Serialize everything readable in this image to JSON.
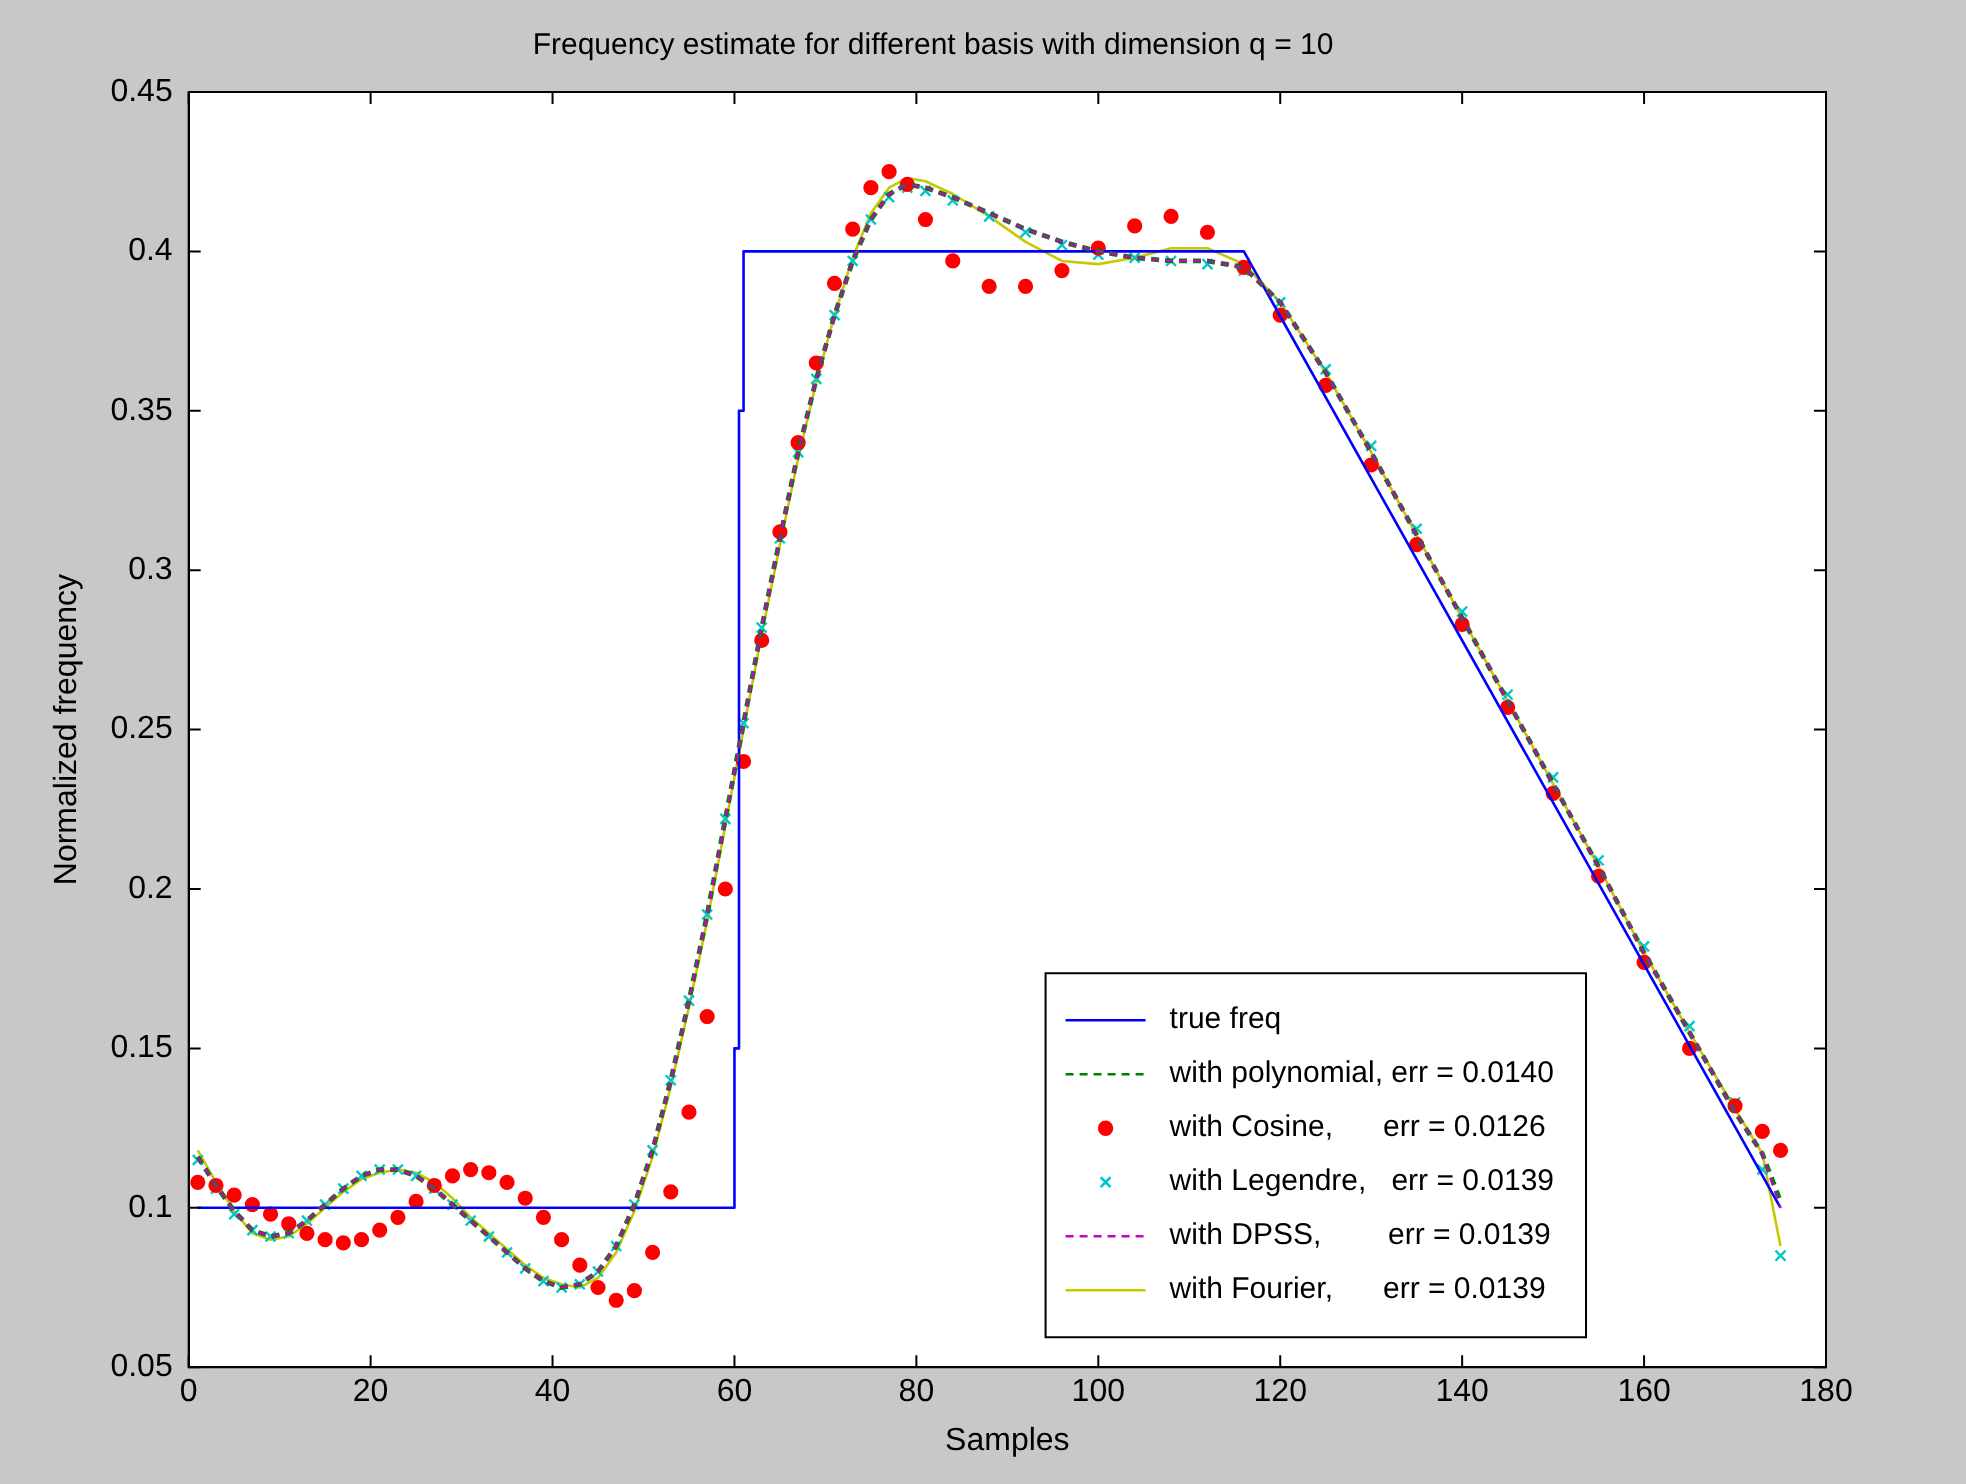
{
  "chart_data": {
    "type": "line",
    "title": "Frequency estimate for different basis with dimension q = 10",
    "xlabel": "Samples",
    "ylabel": "Normalized frequency",
    "xlim": [
      0,
      180
    ],
    "xticks": [
      0,
      20,
      40,
      60,
      80,
      100,
      120,
      140,
      160,
      180
    ],
    "ylim": [
      0.05,
      0.45
    ],
    "yticks": [
      0.05,
      0.1,
      0.15,
      0.2,
      0.25,
      0.3,
      0.35,
      0.4,
      0.45
    ],
    "grid": false,
    "legend": "bottom right",
    "marker": "none",
    "line_style": "solid",
    "series": [
      {
        "name": "true freq",
        "color": "#0000ff",
        "x": [
          1,
          60,
          60,
          60.5,
          60.5,
          61,
          61,
          116,
          175
        ],
        "values": [
          0.1,
          0.1,
          0.15,
          0.15,
          0.35,
          0.35,
          0.4,
          0.4,
          0.1
        ]
      },
      {
        "name": "with polynomial, err = 0.0140",
        "color": "#008000",
        "line_style": "dashed",
        "x": [
          1,
          3,
          5,
          7,
          9,
          11,
          13,
          15,
          17,
          19,
          21,
          23,
          25,
          27,
          29,
          31,
          33,
          35,
          37,
          39,
          41,
          43,
          45,
          47,
          49,
          51,
          53,
          55,
          57,
          59,
          61,
          63,
          65,
          67,
          69,
          71,
          73,
          75,
          77,
          79,
          81,
          84,
          88,
          92,
          96,
          100,
          104,
          108,
          112,
          116,
          120,
          125,
          130,
          135,
          140,
          145,
          150,
          155,
          160,
          165,
          170,
          173,
          175
        ],
        "values": [
          0.116,
          0.107,
          0.099,
          0.093,
          0.091,
          0.092,
          0.096,
          0.101,
          0.106,
          0.11,
          0.112,
          0.112,
          0.11,
          0.106,
          0.101,
          0.096,
          0.091,
          0.086,
          0.081,
          0.077,
          0.075,
          0.076,
          0.08,
          0.088,
          0.101,
          0.118,
          0.14,
          0.165,
          0.192,
          0.222,
          0.252,
          0.282,
          0.31,
          0.337,
          0.36,
          0.38,
          0.397,
          0.41,
          0.418,
          0.421,
          0.42,
          0.417,
          0.412,
          0.407,
          0.403,
          0.4,
          0.398,
          0.397,
          0.397,
          0.395,
          0.384,
          0.362,
          0.337,
          0.311,
          0.285,
          0.259,
          0.233,
          0.207,
          0.18,
          0.155,
          0.13,
          0.117,
          0.102
        ]
      },
      {
        "name": "with Cosine,      err = 0.0126",
        "type": "scatter",
        "color": "#ff0000",
        "marker": "circle",
        "x": [
          1,
          3,
          5,
          7,
          9,
          11,
          13,
          15,
          17,
          19,
          21,
          23,
          25,
          27,
          29,
          31,
          33,
          35,
          37,
          39,
          41,
          43,
          45,
          47,
          49,
          51,
          53,
          55,
          57,
          59,
          61,
          63,
          65,
          67,
          69,
          71,
          73,
          75,
          77,
          79,
          81,
          84,
          88,
          92,
          96,
          100,
          104,
          108,
          112,
          116,
          120,
          125,
          130,
          135,
          140,
          145,
          150,
          155,
          160,
          165,
          170,
          173,
          175
        ],
        "values": [
          0.108,
          0.107,
          0.104,
          0.101,
          0.098,
          0.095,
          0.092,
          0.09,
          0.089,
          0.09,
          0.093,
          0.097,
          0.102,
          0.107,
          0.11,
          0.112,
          0.111,
          0.108,
          0.103,
          0.097,
          0.09,
          0.082,
          0.075,
          0.071,
          0.074,
          0.086,
          0.105,
          0.13,
          0.16,
          0.2,
          0.24,
          0.278,
          0.312,
          0.34,
          0.365,
          0.39,
          0.407,
          0.42,
          0.425,
          0.421,
          0.41,
          0.397,
          0.389,
          0.389,
          0.394,
          0.401,
          0.408,
          0.411,
          0.406,
          0.395,
          0.38,
          0.358,
          0.333,
          0.308,
          0.283,
          0.257,
          0.23,
          0.204,
          0.177,
          0.15,
          0.132,
          0.124,
          0.118
        ]
      },
      {
        "name": "with Legendre,   err = 0.0139",
        "type": "scatter",
        "color": "#00c8c8",
        "marker": "cross",
        "x": [
          1,
          3,
          5,
          7,
          9,
          11,
          13,
          15,
          17,
          19,
          21,
          23,
          25,
          27,
          29,
          31,
          33,
          35,
          37,
          39,
          41,
          43,
          45,
          47,
          49,
          51,
          53,
          55,
          57,
          59,
          61,
          63,
          65,
          67,
          69,
          71,
          73,
          75,
          77,
          79,
          81,
          84,
          88,
          92,
          96,
          100,
          104,
          108,
          112,
          116,
          120,
          125,
          130,
          135,
          140,
          145,
          150,
          155,
          160,
          165,
          170,
          173,
          175
        ],
        "values": [
          0.115,
          0.106,
          0.098,
          0.093,
          0.091,
          0.092,
          0.096,
          0.101,
          0.106,
          0.11,
          0.112,
          0.112,
          0.11,
          0.106,
          0.101,
          0.096,
          0.091,
          0.086,
          0.081,
          0.077,
          0.075,
          0.076,
          0.08,
          0.088,
          0.101,
          0.118,
          0.14,
          0.165,
          0.192,
          0.222,
          0.252,
          0.282,
          0.31,
          0.337,
          0.36,
          0.38,
          0.397,
          0.41,
          0.417,
          0.42,
          0.419,
          0.416,
          0.411,
          0.406,
          0.402,
          0.399,
          0.398,
          0.397,
          0.396,
          0.394,
          0.384,
          0.363,
          0.339,
          0.313,
          0.287,
          0.261,
          0.235,
          0.209,
          0.182,
          0.157,
          0.133,
          0.112,
          0.085
        ]
      },
      {
        "name": "with DPSS,        err = 0.0139",
        "color": "#c800c8",
        "line_style": "dashed",
        "x": [
          1,
          3,
          5,
          7,
          9,
          11,
          13,
          15,
          17,
          19,
          21,
          23,
          25,
          27,
          29,
          31,
          33,
          35,
          37,
          39,
          41,
          43,
          45,
          47,
          49,
          51,
          53,
          55,
          57,
          59,
          61,
          63,
          65,
          67,
          69,
          71,
          73,
          75,
          77,
          79,
          81,
          84,
          88,
          92,
          96,
          100,
          104,
          108,
          112,
          116,
          120,
          125,
          130,
          135,
          140,
          145,
          150,
          155,
          160,
          165,
          170,
          173,
          175
        ],
        "values": [
          0.116,
          0.107,
          0.099,
          0.093,
          0.091,
          0.092,
          0.096,
          0.101,
          0.106,
          0.11,
          0.112,
          0.112,
          0.11,
          0.106,
          0.101,
          0.096,
          0.091,
          0.086,
          0.081,
          0.077,
          0.075,
          0.076,
          0.08,
          0.088,
          0.101,
          0.118,
          0.14,
          0.165,
          0.192,
          0.222,
          0.252,
          0.282,
          0.31,
          0.337,
          0.36,
          0.38,
          0.397,
          0.41,
          0.418,
          0.421,
          0.42,
          0.417,
          0.412,
          0.407,
          0.403,
          0.4,
          0.398,
          0.397,
          0.397,
          0.395,
          0.384,
          0.362,
          0.337,
          0.311,
          0.285,
          0.259,
          0.233,
          0.207,
          0.18,
          0.155,
          0.13,
          0.117,
          0.1
        ]
      },
      {
        "name": "with Fourier,      err = 0.0139",
        "color": "#c8c800",
        "x": [
          1,
          3,
          5,
          7,
          9,
          11,
          13,
          15,
          17,
          19,
          21,
          23,
          25,
          27,
          29,
          31,
          33,
          35,
          37,
          39,
          41,
          43,
          45,
          47,
          49,
          51,
          53,
          55,
          57,
          59,
          61,
          63,
          65,
          67,
          69,
          71,
          73,
          75,
          77,
          79,
          81,
          84,
          88,
          92,
          96,
          100,
          104,
          108,
          112,
          116,
          120,
          125,
          130,
          135,
          140,
          145,
          150,
          155,
          160,
          165,
          170,
          173,
          175
        ],
        "values": [
          0.118,
          0.108,
          0.099,
          0.092,
          0.09,
          0.091,
          0.095,
          0.1,
          0.105,
          0.109,
          0.111,
          0.112,
          0.111,
          0.108,
          0.103,
          0.097,
          0.092,
          0.087,
          0.082,
          0.078,
          0.076,
          0.075,
          0.078,
          0.086,
          0.099,
          0.116,
          0.138,
          0.163,
          0.19,
          0.22,
          0.25,
          0.28,
          0.308,
          0.335,
          0.359,
          0.38,
          0.398,
          0.412,
          0.42,
          0.423,
          0.422,
          0.418,
          0.411,
          0.403,
          0.397,
          0.396,
          0.398,
          0.401,
          0.401,
          0.396,
          0.384,
          0.362,
          0.337,
          0.311,
          0.285,
          0.259,
          0.233,
          0.207,
          0.18,
          0.155,
          0.131,
          0.117,
          0.088
        ]
      }
    ]
  }
}
